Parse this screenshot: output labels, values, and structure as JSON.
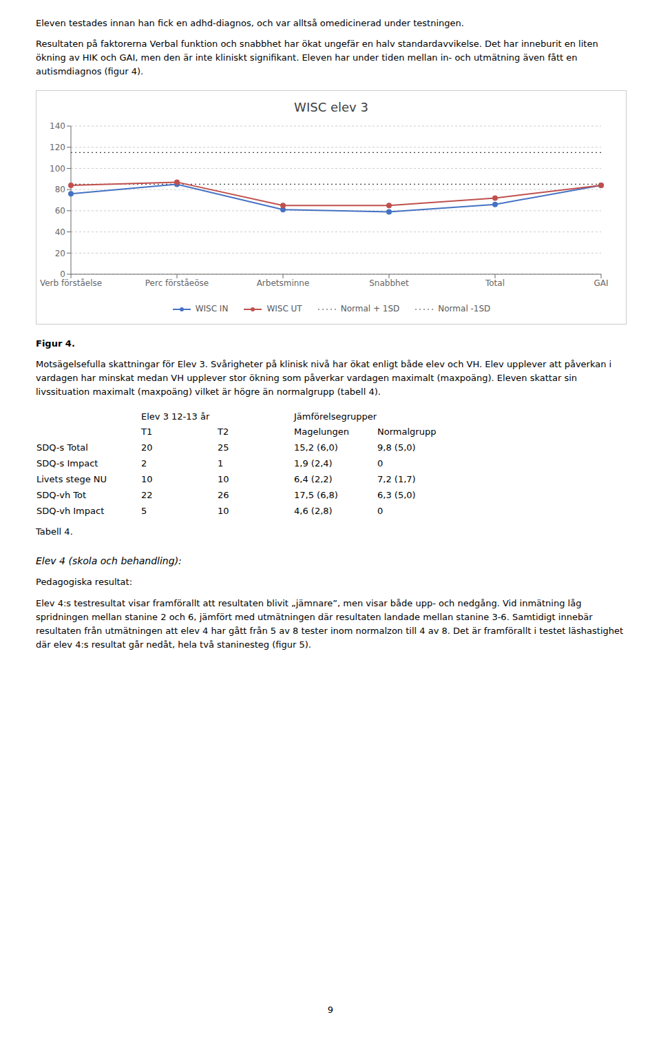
{
  "chart_data": {
    "type": "line",
    "title": "WISC elev 3",
    "categories": [
      "Verb förståelse",
      "Perc förståeöse",
      "Arbetsminne",
      "Snabbhet",
      "Total",
      "GAI"
    ],
    "series": [
      {
        "name": "WISC IN",
        "color": "#4472c4",
        "marker": "circle",
        "values": [
          76,
          85,
          61,
          59,
          66,
          84
        ]
      },
      {
        "name": "WISC UT",
        "color": "#c0504d",
        "marker": "circle",
        "values": [
          84,
          87,
          65,
          65,
          72,
          84
        ]
      }
    ],
    "reference_lines": [
      {
        "name": "Normal + 1SD",
        "value": 115,
        "color": "#404040",
        "line_style": "dotted"
      },
      {
        "name": "Normal -1SD",
        "value": 85,
        "color": "#404040",
        "line_style": "dotted"
      }
    ],
    "ylim": [
      0,
      140
    ],
    "yticks": [
      0,
      20,
      40,
      60,
      80,
      100,
      120,
      140
    ],
    "grid": true
  },
  "annotations": [
    "Eleven testades innan han fick en adhd-diagnos, och var alltså omedicinerad under testningen.",
    "Resultaten på faktorerna Verbal funktion och snabbhet har ökat ungefär en halv standardavvikelse. Det har inneburit en liten ökning av HIK och GAI, men den är inte kliniskt signifikant. Eleven har under tiden mellan in- och utmätning även fått en autismdiagnos (figur 4).",
    "Figur 4.",
    "Motsägelsefulla skattningar för Elev 3. Svårigheter på klinisk nivå har ökat enligt både elev och VH. Elev upplever att påverkan i vardagen har minskat medan VH upplever stor ökning som påverkar vardagen maximalt (maxpoäng). Eleven skattar sin livssituation maximalt (maxpoäng) vilket är högre än normalgrupp (tabell 4).",
    "Tabell 4.",
    "Elev 4 (skola och behandling):",
    "Pedagogiska resultat:",
    "Elev 4:s testresultat visar framförallt att resultaten blivit „jämnare”, men visar både upp- och nedgång. Vid inmätning låg spridningen mellan stanine 2 och 6, jämfört med utmätningen där resultaten landade mellan stanine 3-6. Samtidigt innebär resultaten från utmätningen att elev 4 har gått från 5 av 8 tester inom normalzon till 4 av 8. Det är framförallt i testet läshastighet där elev 4:s resultat går nedåt, hela två staninesteg (figur 5).",
    "9"
  ],
  "table": {
    "headers": [
      "Elev 3 12-13 år",
      "Jämförelsegrupper"
    ],
    "columns": [
      "T1",
      "T2",
      "Magelungen",
      "Normalgrupp"
    ],
    "rows": [
      [
        "SDQ-s Total",
        "20",
        "25",
        "15,2 (6,0)",
        "9,8 (5,0)"
      ],
      [
        "SDQ-s Impact",
        "2",
        "1",
        "1,9 (2,4)",
        "0"
      ],
      [
        "Livets stege NU",
        "10",
        "10",
        "6,4 (2,2)",
        "7,2 (1,7)"
      ],
      [
        "SDQ-vh Tot",
        "22",
        "26",
        "17,5 (6,8)",
        "6,3 (5,0)"
      ],
      [
        "SDQ-vh Impact",
        "5",
        "10",
        "4,6 (2,8)",
        "0"
      ]
    ]
  }
}
